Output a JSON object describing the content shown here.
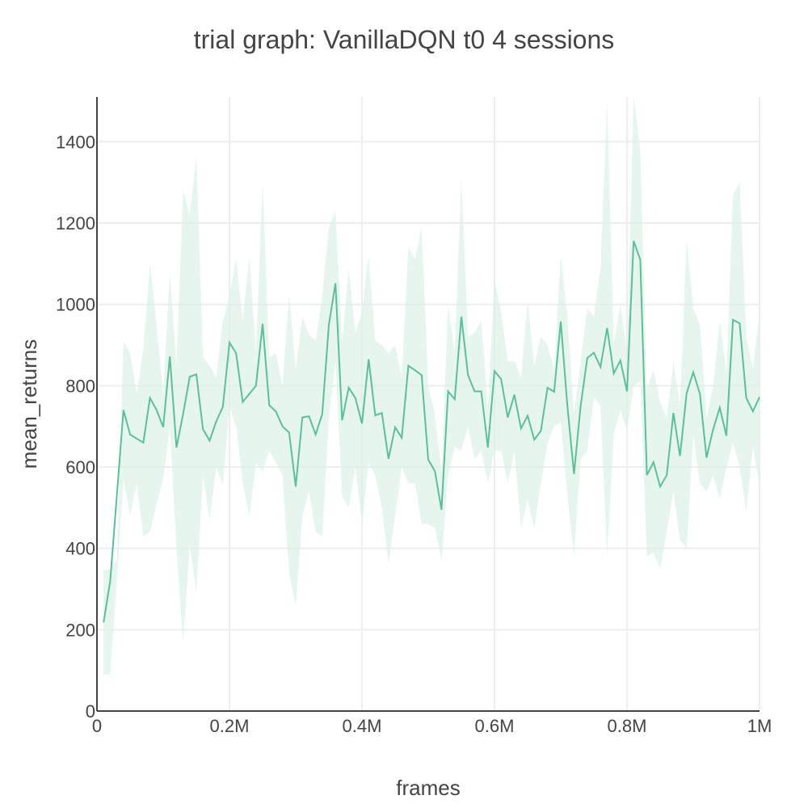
{
  "chart_data": {
    "type": "line",
    "title": "trial graph: VanillaDQN t0 4 sessions",
    "xlabel": "frames",
    "ylabel": "mean_returns",
    "xlim": [
      0,
      1000000
    ],
    "ylim": [
      0,
      1510
    ],
    "x_ticks": [
      0,
      200000,
      400000,
      600000,
      800000,
      1000000
    ],
    "x_tick_labels": [
      "0",
      "0.2M",
      "0.4M",
      "0.6M",
      "0.8M",
      "1M"
    ],
    "y_ticks": [
      0,
      200,
      400,
      600,
      800,
      1000,
      1200,
      1400
    ],
    "y_tick_labels": [
      "0",
      "200",
      "400",
      "600",
      "800",
      "1000",
      "1200",
      "1400"
    ],
    "grid": true,
    "colors": {
      "line": "#5dbe9a",
      "band": "#d8f1e6"
    },
    "series": [
      {
        "x": [
          10000,
          20000,
          30000,
          40000,
          50000,
          60000,
          70000,
          80000,
          90000,
          100000,
          110000,
          120000,
          130000,
          140000,
          150000,
          160000,
          170000,
          180000,
          190000,
          200000,
          210000,
          220000,
          230000,
          240000,
          250000,
          260000,
          270000,
          280000,
          290000,
          300000,
          310000,
          320000,
          330000,
          340000,
          350000,
          360000,
          370000,
          380000,
          390000,
          400000,
          410000,
          420000,
          430000,
          440000,
          450000,
          460000,
          470000,
          480000,
          490000,
          500000,
          510000,
          520000,
          530000,
          540000,
          550000,
          560000,
          570000,
          580000,
          590000,
          600000,
          610000,
          620000,
          630000,
          640000,
          650000,
          660000,
          670000,
          680000,
          690000,
          700000,
          710000,
          720000,
          730000,
          740000,
          750000,
          760000,
          770000,
          780000,
          790000,
          800000,
          810000,
          820000,
          830000,
          840000,
          850000,
          860000,
          870000,
          880000,
          890000,
          900000,
          910000,
          920000,
          930000,
          940000,
          950000,
          960000,
          970000,
          980000,
          990000,
          1000000
        ],
        "values": [
          218,
          320,
          530,
          740,
          680,
          670,
          660,
          770,
          740,
          698,
          872,
          648,
          730,
          822,
          828,
          693,
          665,
          712,
          748,
          906,
          880,
          760,
          780,
          800,
          952,
          752,
          737,
          700,
          685,
          552,
          722,
          725,
          680,
          730,
          950,
          1052,
          715,
          795,
          770,
          707,
          865,
          727,
          733,
          620,
          698,
          672,
          849,
          838,
          826,
          618,
          590,
          495,
          786,
          767,
          970,
          826,
          786,
          786,
          648,
          836,
          816,
          722,
          778,
          695,
          726,
          667,
          689,
          795,
          785,
          958,
          750,
          583,
          750,
          868,
          881,
          846,
          942,
          830,
          862,
          786,
          1156,
          1110,
          580,
          612,
          552,
          580,
          733,
          627,
          782,
          833,
          780,
          623,
          693,
          746,
          677,
          962,
          953,
          770,
          737,
          772
        ],
        "upper": [
          345,
          350,
          370,
          910,
          880,
          780,
          890,
          1100,
          950,
          780,
          1080,
          850,
          1280,
          1220,
          1365,
          870,
          850,
          820,
          960,
          1020,
          1110,
          960,
          1120,
          880,
          1300,
          870,
          880,
          800,
          1025,
          840,
          970,
          925,
          910,
          1020,
          1190,
          1230,
          910,
          1090,
          930,
          980,
          1120,
          910,
          900,
          880,
          900,
          820,
          1140,
          1110,
          1190,
          800,
          730,
          590,
          1000,
          880,
          1310,
          920,
          930,
          960,
          750,
          1060,
          980,
          860,
          860,
          820,
          1010,
          850,
          920,
          900,
          840,
          1120,
          970,
          730,
          860,
          990,
          970,
          1090,
          1500,
          900,
          1000,
          880,
          1510,
          1380,
          790,
          840,
          760,
          720,
          860,
          750,
          1160,
          990,
          950,
          720,
          800,
          960,
          830,
          1270,
          1300,
          920,
          840,
          980
        ],
        "lower": [
          90,
          90,
          320,
          570,
          480,
          560,
          430,
          440,
          510,
          570,
          700,
          400,
          165,
          410,
          290,
          580,
          470,
          600,
          555,
          750,
          700,
          560,
          480,
          610,
          590,
          640,
          610,
          580,
          340,
          260,
          480,
          540,
          440,
          430,
          720,
          860,
          530,
          500,
          600,
          460,
          610,
          580,
          500,
          360,
          480,
          600,
          560,
          560,
          460,
          460,
          450,
          370,
          580,
          650,
          640,
          700,
          620,
          640,
          560,
          640,
          640,
          560,
          640,
          450,
          520,
          450,
          560,
          660,
          700,
          710,
          530,
          380,
          620,
          640,
          770,
          750,
          380,
          680,
          740,
          690,
          800,
          810,
          380,
          390,
          350,
          440,
          540,
          420,
          400,
          680,
          560,
          540,
          580,
          520,
          600,
          660,
          600,
          490,
          650,
          550
        ]
      }
    ]
  }
}
